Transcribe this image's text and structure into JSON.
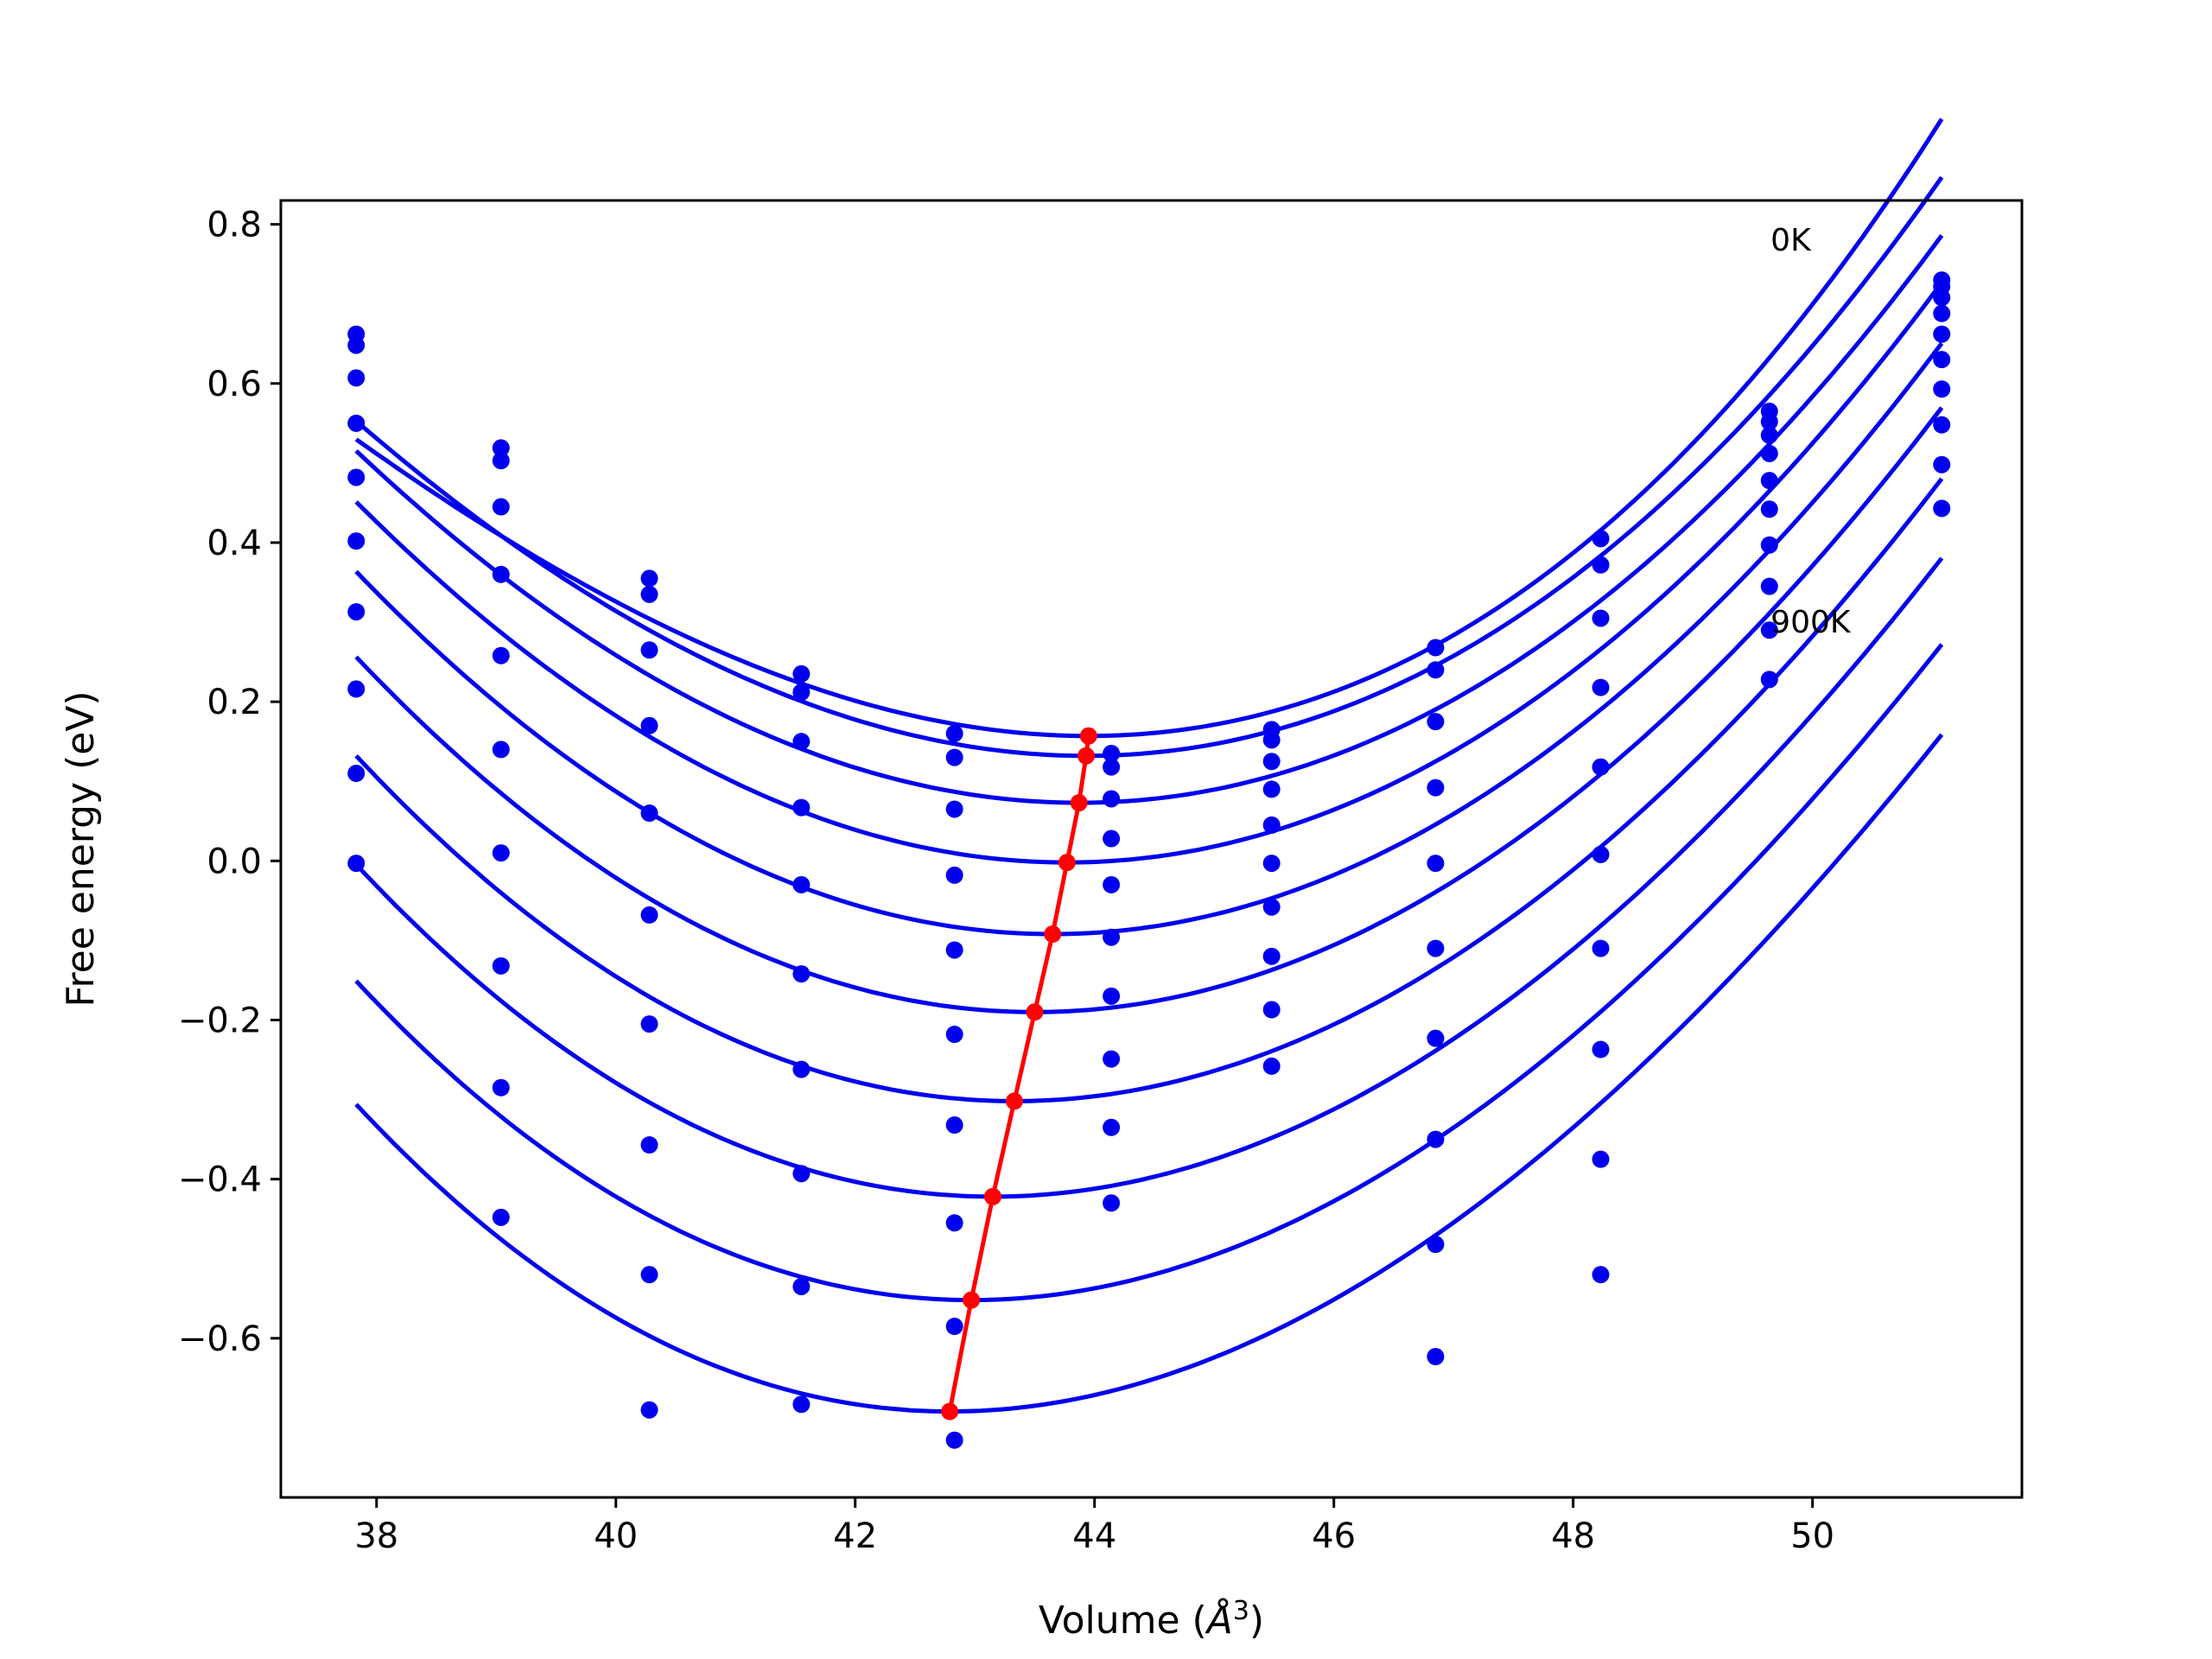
{
  "chart_data": {
    "type": "scatter",
    "title": "",
    "xlabel": "Volume",
    "xlabel_unit": "Å",
    "xlabel_unit_power": "3",
    "ylabel": "Free energy (eV)",
    "xlim": [
      37.2,
      51.75
    ],
    "ylim": [
      -0.8,
      0.83
    ],
    "xticks": [
      38,
      40,
      42,
      44,
      46,
      48,
      50
    ],
    "yticks": [
      -0.6,
      -0.4,
      -0.2,
      0.0,
      0.2,
      0.4,
      0.6,
      0.8
    ],
    "xtick_labels": [
      "38",
      "40",
      "42",
      "44",
      "46",
      "48",
      "50"
    ],
    "ytick_labels": [
      "−0.6",
      "−0.4",
      "−0.2",
      "0.0",
      "0.2",
      "0.4",
      "0.6",
      "0.8"
    ],
    "grid": false,
    "legend": "none",
    "colors": {
      "data": "#0000ee",
      "fits": "#0000ee",
      "minima": "#ff0000",
      "text": "#000000",
      "frame": "#000000"
    },
    "annotations": [
      {
        "text": "0K",
        "x": 49.65,
        "y": 0.78
      },
      {
        "text": "900K",
        "x": 49.65,
        "y": 0.3
      }
    ],
    "volumes": [
      37.83,
      39.04,
      40.28,
      41.55,
      42.83,
      44.14,
      45.48,
      46.85,
      48.23,
      49.64,
      51.08
    ],
    "series": [
      {
        "values": [
          0.662,
          0.519,
          0.355,
          0.235,
          0.16,
          0.135,
          0.165,
          0.268,
          0.405,
          0.565,
          0.73
        ]
      },
      {
        "values": [
          0.648,
          0.503,
          0.335,
          0.212,
          0.13,
          0.118,
          0.152,
          0.24,
          0.372,
          0.552,
          0.722
        ]
      },
      {
        "values": [
          0.607,
          0.445,
          0.265,
          0.15,
          0.065,
          0.078,
          0.125,
          0.175,
          0.305,
          0.535,
          0.708
        ]
      },
      {
        "values": [
          0.55,
          0.36,
          0.17,
          0.067,
          -0.018,
          0.028,
          0.09,
          0.092,
          0.218,
          0.512,
          0.688
        ]
      },
      {
        "values": [
          0.482,
          0.258,
          0.06,
          -0.03,
          -0.112,
          -0.03,
          0.045,
          -0.003,
          0.118,
          0.478,
          0.662
        ]
      },
      {
        "values": [
          0.402,
          0.14,
          -0.068,
          -0.142,
          -0.218,
          -0.096,
          -0.003,
          -0.11,
          0.008,
          0.442,
          0.63
        ]
      },
      {
        "values": [
          0.313,
          0.01,
          -0.205,
          -0.262,
          -0.332,
          -0.17,
          -0.058,
          -0.223,
          -0.11,
          0.397,
          0.593
        ]
      },
      {
        "values": [
          0.216,
          -0.132,
          -0.357,
          -0.393,
          -0.455,
          -0.249,
          -0.12,
          -0.35,
          -0.237,
          0.345,
          0.548
        ]
      },
      {
        "values": [
          0.11,
          -0.285,
          -0.52,
          -0.535,
          -0.585,
          -0.335,
          -0.187,
          -0.482,
          -0.375,
          0.29,
          0.498
        ]
      },
      {
        "values": [
          -0.003,
          -0.448,
          -0.69,
          -0.683,
          -0.728,
          -0.43,
          -0.258,
          -0.623,
          -0.52,
          0.228,
          0.443
        ]
      }
    ],
    "fits": [
      {
        "vmin": 43.95,
        "emin": 0.157,
        "k": 0.0124,
        "c": 0.0004
      },
      {
        "vmin": 43.93,
        "emin": 0.132,
        "k": 0.01265,
        "c": 0.00022
      },
      {
        "vmin": 43.87,
        "emin": 0.073,
        "k": 0.01285,
        "c": 0.00012
      },
      {
        "vmin": 43.77,
        "emin": -0.002,
        "k": 0.0132,
        "c": 6e-05
      },
      {
        "vmin": 43.65,
        "emin": -0.092,
        "k": 0.01345,
        "c": 0.0
      },
      {
        "vmin": 43.5,
        "emin": -0.19,
        "k": 0.0136,
        "c": -5e-05
      },
      {
        "vmin": 43.33,
        "emin": -0.302,
        "k": 0.0138,
        "c": -0.0001
      },
      {
        "vmin": 43.15,
        "emin": -0.422,
        "k": 0.01395,
        "c": -0.00015
      },
      {
        "vmin": 42.97,
        "emin": -0.552,
        "k": 0.01415,
        "c": -0.0002
      },
      {
        "vmin": 42.79,
        "emin": -0.692,
        "k": 0.01445,
        "c": -0.00025
      }
    ],
    "fit_range": [
      37.83,
      51.08
    ],
    "minima": [
      {
        "x": 43.95,
        "y": 0.157
      },
      {
        "x": 43.93,
        "y": 0.132
      },
      {
        "x": 43.87,
        "y": 0.073
      },
      {
        "x": 43.77,
        "y": -0.002
      },
      {
        "x": 43.65,
        "y": -0.092
      },
      {
        "x": 43.5,
        "y": -0.19
      },
      {
        "x": 43.33,
        "y": -0.302
      },
      {
        "x": 43.15,
        "y": -0.422
      },
      {
        "x": 42.97,
        "y": -0.552
      },
      {
        "x": 42.79,
        "y": -0.692
      }
    ]
  }
}
